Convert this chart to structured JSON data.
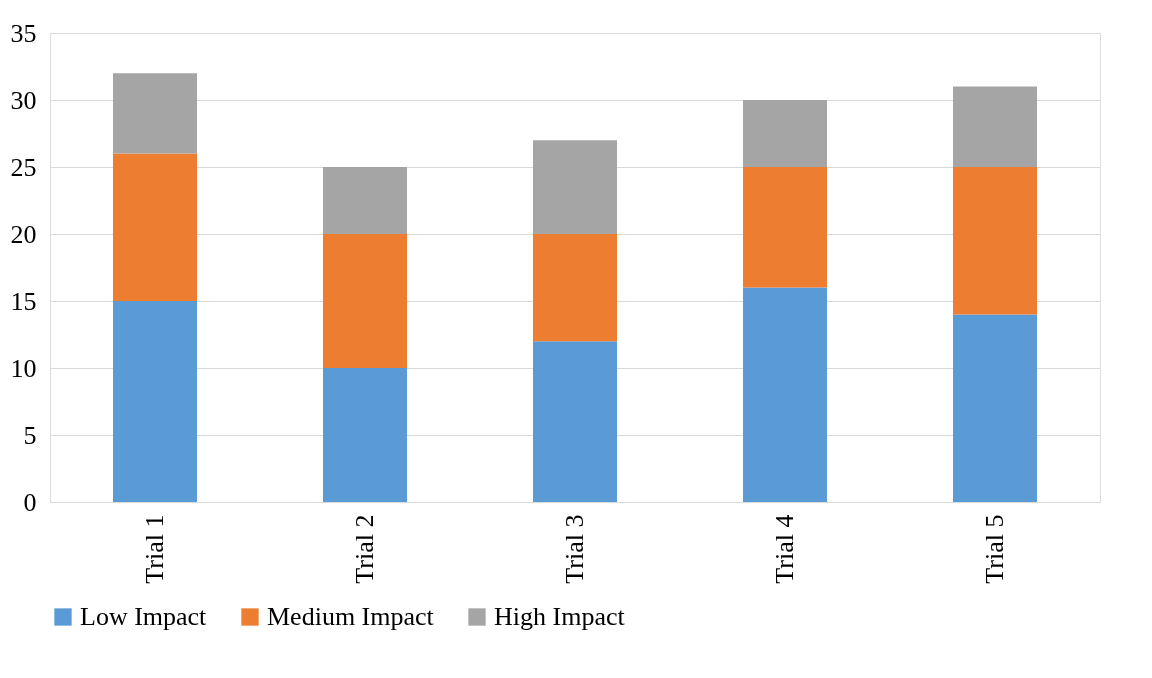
{
  "chart_data": {
    "type": "bar",
    "stacked": true,
    "categories": [
      "Trial 1",
      "Trial 2",
      "Trial 3",
      "Trial 4",
      "Trial 5"
    ],
    "series": [
      {
        "name": "Low Impact",
        "color": "#5b9bd5",
        "values": [
          15,
          10,
          12,
          16,
          14
        ]
      },
      {
        "name": "Medium Impact",
        "color": "#ed7d31",
        "values": [
          11,
          10,
          8,
          9,
          11
        ]
      },
      {
        "name": "High Impact",
        "color": "#a5a5a5",
        "values": [
          6,
          5,
          7,
          5,
          6
        ]
      }
    ],
    "ylim": [
      0,
      35
    ],
    "yticks": [
      0,
      5,
      10,
      15,
      20,
      25,
      30,
      35
    ],
    "grid": "y",
    "legend": "bottom"
  }
}
